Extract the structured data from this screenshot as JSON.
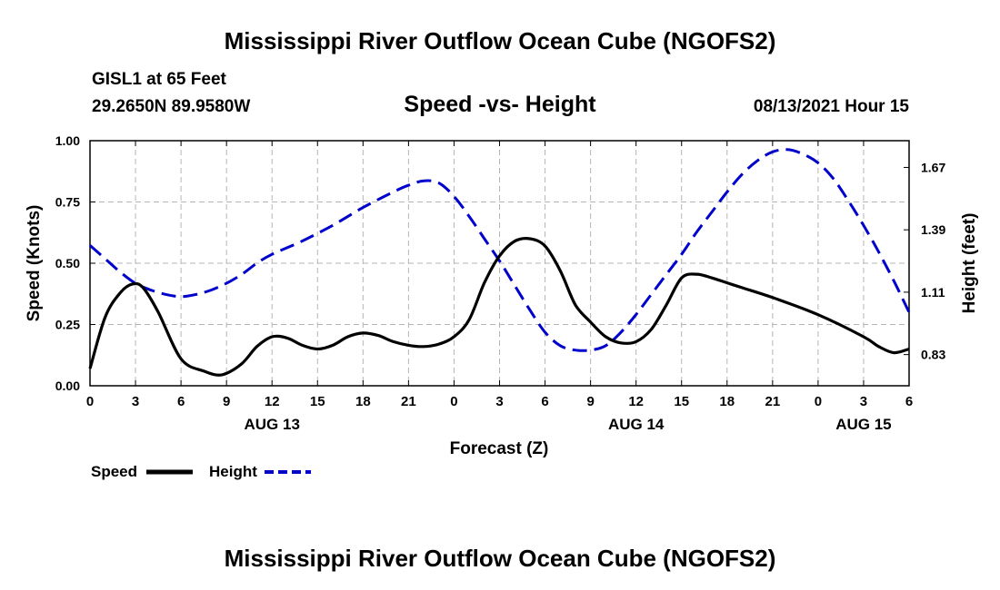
{
  "header": {
    "title": "Mississippi River Outflow Ocean Cube (NGOFS2)",
    "station": "GISL1 at 65 Feet",
    "coords": "29.2650N  89.9580W",
    "subtitle": "Speed -vs- Height",
    "datetime": "08/13/2021 Hour 15"
  },
  "footer": {
    "title": "Mississippi River Outflow Ocean Cube (NGOFS2)"
  },
  "chart_data": {
    "type": "line",
    "title": "Speed -vs- Height",
    "xlabel": "Forecast (Z)",
    "ylabel": "Speed (Knots)",
    "y2label": "Height (feet)",
    "xlim": [
      0,
      54
    ],
    "ylim": [
      0,
      1.0
    ],
    "y2lim": [
      0.69,
      1.79
    ],
    "grid": true,
    "x_ticks": [
      0,
      3,
      6,
      9,
      12,
      15,
      18,
      21,
      24,
      27,
      30,
      33,
      36,
      39,
      42,
      45,
      48,
      51,
      54
    ],
    "x_tick_labels": [
      "0",
      "3",
      "6",
      "9",
      "12",
      "15",
      "18",
      "21",
      "0",
      "3",
      "6",
      "9",
      "12",
      "15",
      "18",
      "21",
      "0",
      "3",
      "6"
    ],
    "y_ticks": [
      0,
      0.25,
      0.5,
      0.75,
      1.0
    ],
    "y_tick_labels": [
      "0.00",
      "0.25",
      "0.50",
      "0.75",
      "1.00"
    ],
    "y2_ticks": [
      0.83,
      1.11,
      1.39,
      1.67
    ],
    "y2_tick_labels": [
      "0.83",
      "1.11",
      "1.39",
      "1.67"
    ],
    "day_labels": [
      {
        "x": 12,
        "label": "AUG 13"
      },
      {
        "x": 36,
        "label": "AUG 14"
      },
      {
        "x": 51,
        "label": "AUG 15"
      }
    ],
    "series": [
      {
        "name": "Speed",
        "axis": "left",
        "color": "#000000",
        "dash": "solid",
        "x": [
          0,
          1,
          2,
          2.8,
          3.5,
          4.5,
          6,
          7.5,
          8.7,
          10,
          11,
          12,
          13,
          14,
          15,
          16,
          17,
          18,
          19,
          20,
          21,
          22,
          23,
          24,
          25,
          26,
          27,
          28,
          29,
          30,
          31,
          32,
          33,
          34,
          35,
          36,
          37,
          38,
          39,
          40,
          41,
          42,
          43,
          45,
          48,
          51,
          52,
          53,
          54
        ],
        "values": [
          0.07,
          0.28,
          0.38,
          0.415,
          0.4,
          0.3,
          0.11,
          0.06,
          0.045,
          0.09,
          0.16,
          0.2,
          0.195,
          0.165,
          0.15,
          0.165,
          0.2,
          0.215,
          0.205,
          0.18,
          0.165,
          0.16,
          0.17,
          0.2,
          0.27,
          0.42,
          0.53,
          0.59,
          0.6,
          0.57,
          0.47,
          0.33,
          0.26,
          0.2,
          0.175,
          0.18,
          0.23,
          0.33,
          0.44,
          0.455,
          0.44,
          0.42,
          0.4,
          0.36,
          0.29,
          0.2,
          0.16,
          0.135,
          0.15
        ]
      },
      {
        "name": "Height",
        "axis": "right",
        "color": "#0000cc",
        "dash": "dashed",
        "x": [
          0,
          1,
          2,
          3,
          4,
          5,
          6,
          7,
          8,
          9,
          10,
          11,
          12,
          14,
          16,
          18,
          20,
          21,
          22,
          23,
          24,
          25,
          26,
          27,
          28,
          29,
          30,
          31,
          32,
          33,
          34,
          35,
          36,
          37,
          38,
          39,
          40,
          41,
          42,
          43,
          44,
          45,
          46,
          47,
          48,
          49,
          50,
          51,
          52,
          53,
          54
        ],
        "values": [
          1.32,
          1.26,
          1.2,
          1.15,
          1.12,
          1.1,
          1.09,
          1.1,
          1.12,
          1.15,
          1.19,
          1.24,
          1.28,
          1.34,
          1.41,
          1.49,
          1.56,
          1.59,
          1.61,
          1.6,
          1.54,
          1.45,
          1.35,
          1.25,
          1.14,
          1.03,
          0.93,
          0.87,
          0.85,
          0.85,
          0.87,
          0.93,
          1.01,
          1.1,
          1.19,
          1.28,
          1.38,
          1.47,
          1.56,
          1.64,
          1.7,
          1.74,
          1.75,
          1.73,
          1.69,
          1.62,
          1.52,
          1.41,
          1.29,
          1.16,
          1.02
        ]
      }
    ]
  },
  "legend": {
    "speed_label": "Speed",
    "height_label": "Height"
  }
}
